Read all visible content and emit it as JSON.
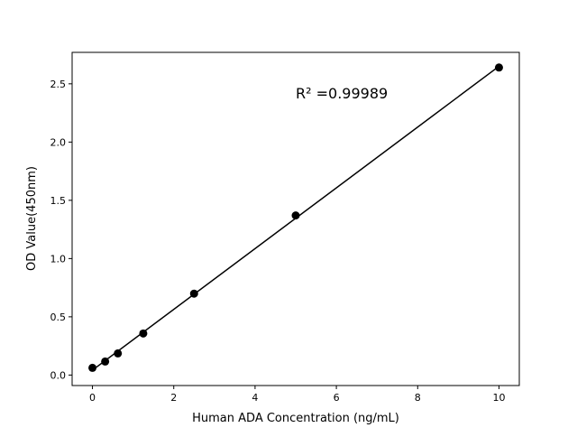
{
  "chart_data": {
    "type": "scatter",
    "title": "",
    "xlabel": "Human ADA Concentration (ng/mL)",
    "ylabel": "OD Value(450nm)",
    "xlim": [
      -0.5,
      10.5
    ],
    "ylim": [
      -0.09,
      2.77
    ],
    "xticks": [
      0,
      2,
      4,
      6,
      8,
      10
    ],
    "xtick_labels": [
      "0",
      "2",
      "4",
      "6",
      "8",
      "10"
    ],
    "yticks": [
      0.0,
      0.5,
      1.0,
      1.5,
      2.0,
      2.5
    ],
    "ytick_labels": [
      "0.0",
      "0.5",
      "1.0",
      "1.5",
      "2.0",
      "2.5"
    ],
    "grid": false,
    "x": [
      0,
      0.3125,
      0.625,
      1.25,
      2.5,
      5,
      10
    ],
    "y": [
      0.062,
      0.116,
      0.186,
      0.357,
      0.699,
      1.37,
      2.64
    ],
    "fit_line": "linear",
    "annotation": "R² =0.99989",
    "marker_color": "#000000",
    "line_color": "#000000"
  }
}
